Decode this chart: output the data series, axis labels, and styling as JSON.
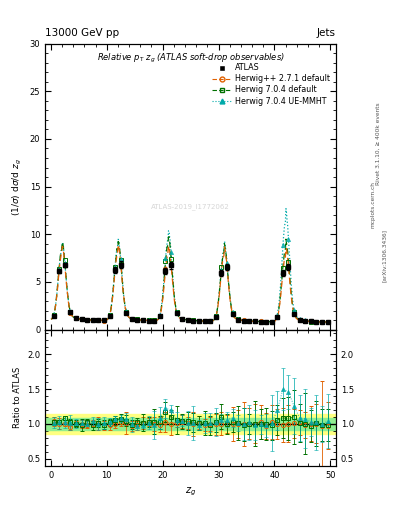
{
  "title_top": "13000 GeV pp",
  "title_right": "Jets",
  "plot_title": "Relative p_{T} z_{g} (ATLAS soft-drop observables)",
  "ylabel_main": "(1/σ) dσ/d z_{g}",
  "ylabel_ratio": "Ratio to ATLAS",
  "xlabel": "z_{g}",
  "rivet_label": "Rivet 3.1.10, ≥ 400k events",
  "arxiv_label": "[arXiv:1306.3436]",
  "mcplots_label": "mcplots.cern.ch",
  "watermark": "ATLAS-2019_I1772062",
  "ylim_main": [
    0,
    30
  ],
  "ylim_ratio": [
    0.4,
    2.35
  ],
  "yticks_main": [
    0,
    5,
    10,
    15,
    20,
    25,
    30
  ],
  "yticks_ratio": [
    0.5,
    1.0,
    1.5,
    2.0
  ],
  "xlim": [
    -1,
    51
  ],
  "xticks": [
    0,
    10,
    20,
    30,
    40,
    50
  ],
  "atlas_color": "#000000",
  "herwig271_color": "#e06000",
  "herwig704_color": "#007000",
  "herwig704ue_color": "#00aaaa",
  "band_green_color": "#90ee90",
  "band_yellow_color": "#ffff80",
  "background_color": "#ffffff"
}
